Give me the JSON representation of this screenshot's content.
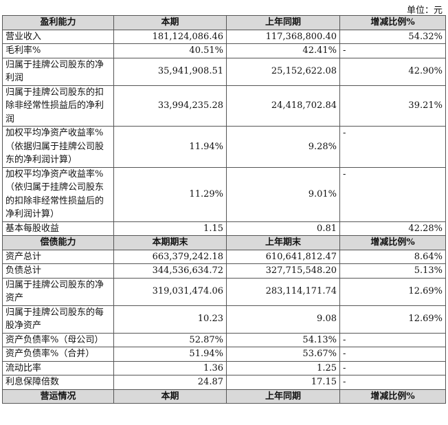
{
  "unit_text": "单位：元",
  "sections": [
    {
      "header": [
        "盈利能力",
        "本期",
        "上年同期",
        "增减比例%"
      ],
      "rows": [
        {
          "label": "营业收入",
          "a": "181,124,086.46",
          "b": "117,368,800.40",
          "c": "54.32%"
        },
        {
          "label": "毛利率%",
          "a": "40.51%",
          "b": "42.41%",
          "c": "-"
        },
        {
          "label": "归属于挂牌公司股东的净利润",
          "a": "35,941,908.51",
          "b": "25,152,622.08",
          "c": "42.90%"
        },
        {
          "label": "归属于挂牌公司股东的扣除非经常性损益后的净利润",
          "a": "33,994,235.28",
          "b": "24,418,702.84",
          "c": "39.21%"
        },
        {
          "label": "加权平均净资产收益率%（依据归属于挂牌公司股东的净利润计算）",
          "a": "11.94%",
          "b": "9.28%",
          "c": "-"
        },
        {
          "label": "加权平均净资产收益率%（依归属于挂牌公司股东的扣除非经常性损益后的净利润计算）",
          "a": "11.29%",
          "b": "9.01%",
          "c": "-"
        },
        {
          "label": "基本每股收益",
          "a": "1.15",
          "b": "0.81",
          "c": "42.28%"
        }
      ]
    },
    {
      "header": [
        "偿债能力",
        "本期期末",
        "上年期末",
        "增减比例%"
      ],
      "rows": [
        {
          "label": "资产总计",
          "a": "663,379,242.18",
          "b": "610,641,812.47",
          "c": "8.64%"
        },
        {
          "label": "负债总计",
          "a": "344,536,634.72",
          "b": "327,715,548.20",
          "c": "5.13%"
        },
        {
          "label": "归属于挂牌公司股东的净资产",
          "a": "319,031,474.06",
          "b": "283,114,171.74",
          "c": "12.69%"
        },
        {
          "label": "归属于挂牌公司股东的每股净资产",
          "a": "10.23",
          "b": "9.08",
          "c": "12.69%"
        },
        {
          "label": "资产负债率%（母公司）",
          "a": "52.87%",
          "b": "54.13%",
          "c": "-"
        },
        {
          "label": "资产负债率%（合并）",
          "a": "51.94%",
          "b": "53.67%",
          "c": "-"
        },
        {
          "label": "流动比率",
          "a": "1.36",
          "b": "1.25",
          "c": "-"
        },
        {
          "label": "利息保障倍数",
          "a": "24.87",
          "b": "17.15",
          "c": "-"
        }
      ]
    },
    {
      "header": [
        "营运情况",
        "本期",
        "上年同期",
        "增减比例%"
      ],
      "rows": []
    }
  ]
}
